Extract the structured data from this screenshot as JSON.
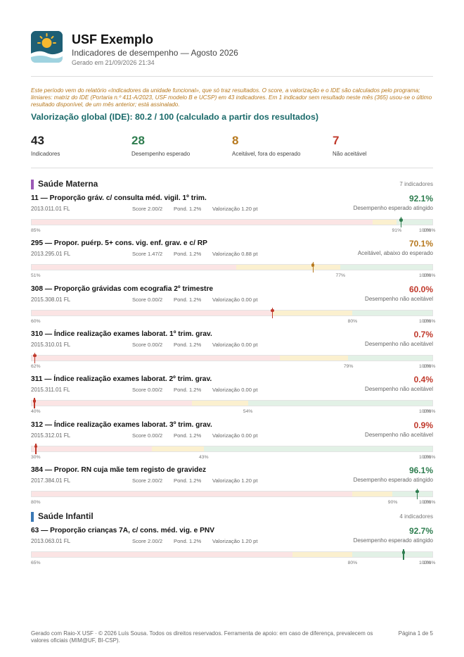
{
  "header": {
    "logo_icon": "sun-landscape-icon",
    "title": "USF Exemplo",
    "subtitle": "Indicadores de desempenho — Agosto 2026",
    "generated": "Gerado em 21/09/2026 21:34"
  },
  "note": "Este período vem do relatório «Indicadores da unidade funcional», que só traz resultados. O score, a valorização e o IDE são calculados pelo programa; limiares: matriz do IDE (Portaria n.º 411-A/2023, USF modelo B e UCSP) em 43 indicadores. Em 1 indicador sem resultado neste mês (365) usou-se o último resultado disponível, de um mês anterior; está assinalado.",
  "ide": "Valorização global (IDE): 80.2 / 100 (calculado a partir dos resultados)",
  "kpis": [
    {
      "value": "43",
      "label": "Indicadores",
      "color": "#222222"
    },
    {
      "value": "28",
      "label": "Desempenho esperado",
      "color": "#2e7d4f"
    },
    {
      "value": "8",
      "label": "Aceitável, fora do esperado",
      "color": "#b7791f"
    },
    {
      "value": "7",
      "label": "Não aceitável",
      "color": "#c0392b"
    }
  ],
  "colors": {
    "green": "#2e7d4f",
    "amber": "#b7791f",
    "red": "#c0392b",
    "band_red": "#fbe4e4",
    "band_amber": "#fbf0cf",
    "band_green": "#e2f1e6",
    "section_materna": "#9b59b6",
    "section_infantil": "#3a78b5"
  },
  "sections": [
    {
      "title": "Saúde Materna",
      "count": "7 indicadores",
      "color": "#9b59b6",
      "indicators": [
        {
          "name": "11 — Proporção gráv. c/ consulta méd. vigil. 1º trim.",
          "value_label": "92.1%",
          "value": 92.1,
          "status_key": "green",
          "code": "2013.011.01 FL",
          "score": "Score 2.00/2",
          "pond": "Pond. 1.2%",
          "valor": "Valorização 1.20 pt",
          "status": "Desempenho esperado atingido",
          "bands": [
            85,
            91,
            100
          ],
          "ticks": [
            "85%",
            "91%",
            "100%",
            "100%"
          ]
        },
        {
          "name": "295 — Propor. puérp. 5+ cons. vig. enf. grav. e c/ RP",
          "value_label": "70.1%",
          "value": 70.1,
          "status_key": "amber",
          "code": "2013.295.01 FL",
          "score": "Score 1.47/2",
          "pond": "Pond. 1.2%",
          "valor": "Valorização 0.88 pt",
          "status": "Aceitável, abaixo do esperado",
          "bands": [
            51,
            77,
            100
          ],
          "ticks": [
            "51%",
            "77%",
            "100%",
            "100%"
          ]
        },
        {
          "name": "308 — Proporção grávidas com ecografia 2º trimestre",
          "value_label": "60.0%",
          "value": 60.0,
          "status_key": "red",
          "code": "2015.308.01 FL",
          "score": "Score 0.00/2",
          "pond": "Pond. 1.2%",
          "valor": "Valorização 0.00 pt",
          "status": "Desempenho não aceitável",
          "bands": [
            60,
            80,
            100
          ],
          "ticks": [
            "60%",
            "80%",
            "100%",
            "100%"
          ]
        },
        {
          "name": "310 — Índice realização exames laborat. 1º trim. grav.",
          "value_label": "0.7%",
          "value": 0.7,
          "status_key": "red",
          "code": "2015.310.01 FL",
          "score": "Score 0.00/2",
          "pond": "Pond. 1.2%",
          "valor": "Valorização 0.00 pt",
          "status": "Desempenho não aceitável",
          "bands": [
            62,
            79,
            100
          ],
          "ticks": [
            "62%",
            "79%",
            "100%",
            "100%"
          ]
        },
        {
          "name": "311 — Índice realização exames laborat. 2º trim. grav.",
          "value_label": "0.4%",
          "value": 0.4,
          "status_key": "red",
          "code": "2015.311.01 FL",
          "score": "Score 0.00/2",
          "pond": "Pond. 1.2%",
          "valor": "Valorização 0.00 pt",
          "status": "Desempenho não aceitável",
          "bands": [
            40,
            54,
            100
          ],
          "ticks": [
            "40%",
            "54%",
            "100%",
            "100%"
          ]
        },
        {
          "name": "312 — Índice realização exames laborat. 3º trim. grav.",
          "value_label": "0.9%",
          "value": 0.9,
          "status_key": "red",
          "code": "2015.312.01 FL",
          "score": "Score 0.00/2",
          "pond": "Pond. 1.2%",
          "valor": "Valorização 0.00 pt",
          "status": "Desempenho não aceitável",
          "bands": [
            30,
            43,
            100
          ],
          "ticks": [
            "30%",
            "43%",
            "100%",
            "100%"
          ]
        },
        {
          "name": "384 — Propor. RN cuja mãe tem registo de gravidez",
          "value_label": "96.1%",
          "value": 96.1,
          "status_key": "green",
          "code": "2017.384.01 FL",
          "score": "Score 2.00/2",
          "pond": "Pond. 1.2%",
          "valor": "Valorização 1.20 pt",
          "status": "Desempenho esperado atingido",
          "bands": [
            80,
            90,
            100
          ],
          "ticks": [
            "80%",
            "90%",
            "100%",
            "100%"
          ]
        }
      ]
    },
    {
      "title": "Saúde Infantil",
      "count": "4 indicadores",
      "color": "#3a78b5",
      "indicators": [
        {
          "name": "63 — Proporção crianças 7A, c/ cons. méd. vig. e PNV",
          "value_label": "92.7%",
          "value": 92.7,
          "status_key": "green",
          "code": "2013.063.01 FL",
          "score": "Score 2.00/2",
          "pond": "Pond. 1.2%",
          "valor": "Valorização 1.20 pt",
          "status": "Desempenho esperado atingido",
          "bands": [
            65,
            80,
            100
          ],
          "ticks": [
            "65%",
            "80%",
            "100%",
            "100%"
          ]
        }
      ]
    }
  ],
  "footer": {
    "text": "Gerado com Raio-X USF · © 2026 Luís Sousa. Todos os direitos reservados. Ferramenta de apoio: em caso de diferença, prevalecem os valores oficiais (MIM@UF, BI-CSP).",
    "page": "Página 1 de 5"
  }
}
